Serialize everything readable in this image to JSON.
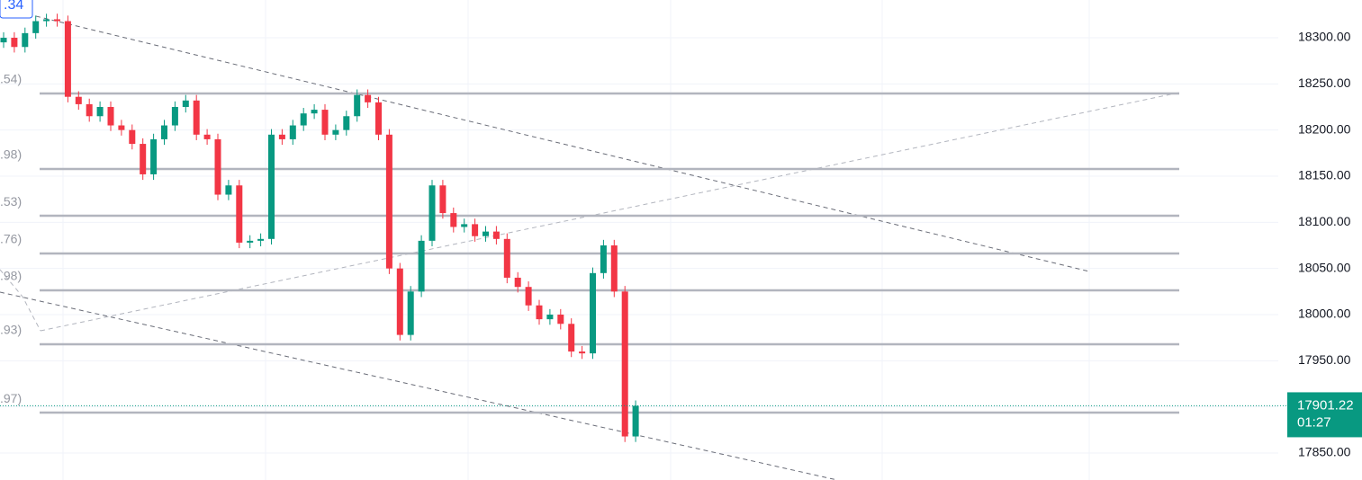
{
  "chart_data": {
    "type": "candlestick",
    "top_label": ".34",
    "series": [
      {
        "up_color": "#089981",
        "down_color": "#f23645",
        "open": [
          18295,
          18300,
          18290,
          18305,
          18318,
          18320,
          18318,
          18236,
          18228,
          18215,
          18225,
          18205,
          18200,
          18185,
          18152,
          18190,
          18205,
          18225,
          18232,
          18195,
          18190,
          18130,
          18140,
          18078,
          18080,
          18082,
          18195,
          18190,
          18205,
          18218,
          18222,
          18195,
          18200,
          18215,
          18238,
          18230,
          18195,
          18050,
          17978,
          18025,
          18080,
          18140,
          18110,
          18095,
          18098,
          18085,
          18090,
          18082,
          18040,
          18030,
          18010,
          17995,
          18000,
          17990,
          17960,
          17958,
          18045,
          18075,
          18025,
          17868
        ],
        "high": [
          18306,
          18306,
          18311,
          18324,
          18326,
          18326,
          18324,
          18242,
          18234,
          18231,
          18231,
          18211,
          18206,
          18191,
          18196,
          18211,
          18231,
          18238,
          18238,
          18201,
          18196,
          18146,
          18146,
          18086,
          18088,
          18201,
          18201,
          18211,
          18224,
          18228,
          18228,
          18206,
          18221,
          18244,
          18244,
          18236,
          18201,
          18056,
          18031,
          18086,
          18146,
          18146,
          18116,
          18104,
          18104,
          18096,
          18096,
          18088,
          18046,
          18036,
          18016,
          18006,
          18006,
          17996,
          17966,
          18051,
          18081,
          18081,
          18031,
          17907
        ],
        "low": [
          18289,
          18284,
          18284,
          18299,
          18312,
          18312,
          18230,
          18222,
          18209,
          18209,
          18199,
          18194,
          18179,
          18146,
          18146,
          18184,
          18199,
          18219,
          18189,
          18184,
          18124,
          18124,
          18072,
          18072,
          18074,
          18076,
          18184,
          18184,
          18199,
          18212,
          18189,
          18189,
          18194,
          18209,
          18224,
          18189,
          18044,
          17972,
          17972,
          18019,
          18074,
          18104,
          18089,
          18089,
          18079,
          18079,
          18076,
          18034,
          18024,
          18004,
          17989,
          17989,
          17984,
          17954,
          17952,
          17952,
          18039,
          18019,
          17862,
          17862
        ],
        "close": [
          18300,
          18290,
          18305,
          18318,
          18320,
          18318,
          18236,
          18228,
          18215,
          18225,
          18205,
          18200,
          18185,
          18152,
          18190,
          18205,
          18225,
          18232,
          18195,
          18190,
          18130,
          18140,
          18078,
          18080,
          18082,
          18195,
          18190,
          18205,
          18218,
          18222,
          18195,
          18200,
          18215,
          18238,
          18230,
          18195,
          18050,
          17978,
          18025,
          18080,
          18140,
          18110,
          18095,
          18098,
          18085,
          18090,
          18082,
          18040,
          18030,
          18010,
          17995,
          18000,
          17990,
          17960,
          17958,
          18045,
          18075,
          18025,
          17868,
          17901.22
        ]
      }
    ],
    "levels": [
      {
        "value": 18239.6,
        "label": ".54)"
      },
      {
        "value": 18157.8,
        "label": ".98)"
      },
      {
        "value": 18107.1,
        "label": ".53)"
      },
      {
        "value": 18066.2,
        "label": ".76)"
      },
      {
        "value": 18026.3,
        "label": ".98)"
      },
      {
        "value": 17967.9,
        "label": ".93)"
      },
      {
        "value": 17893.8,
        "label": ".97)"
      }
    ],
    "level_color": "#b2b5be",
    "countdown": "01:27",
    "ylim": [
      17820.8,
      18340.9
    ],
    "yticks": [
      {
        "value": 17850,
        "label": "17850.00"
      },
      {
        "value": 17900,
        "label": "17900.00"
      },
      {
        "value": 17950,
        "label": "17950.00"
      },
      {
        "value": 18000,
        "label": "18000.00"
      },
      {
        "value": 18050,
        "label": "18050.00"
      },
      {
        "value": 18100,
        "label": "18100.00"
      },
      {
        "value": 18150,
        "label": "18150.00"
      },
      {
        "value": 18200,
        "label": "18200.00"
      },
      {
        "value": 18250,
        "label": "18250.00"
      },
      {
        "value": 18300,
        "label": "18300.00"
      }
    ],
    "grid": true
  }
}
